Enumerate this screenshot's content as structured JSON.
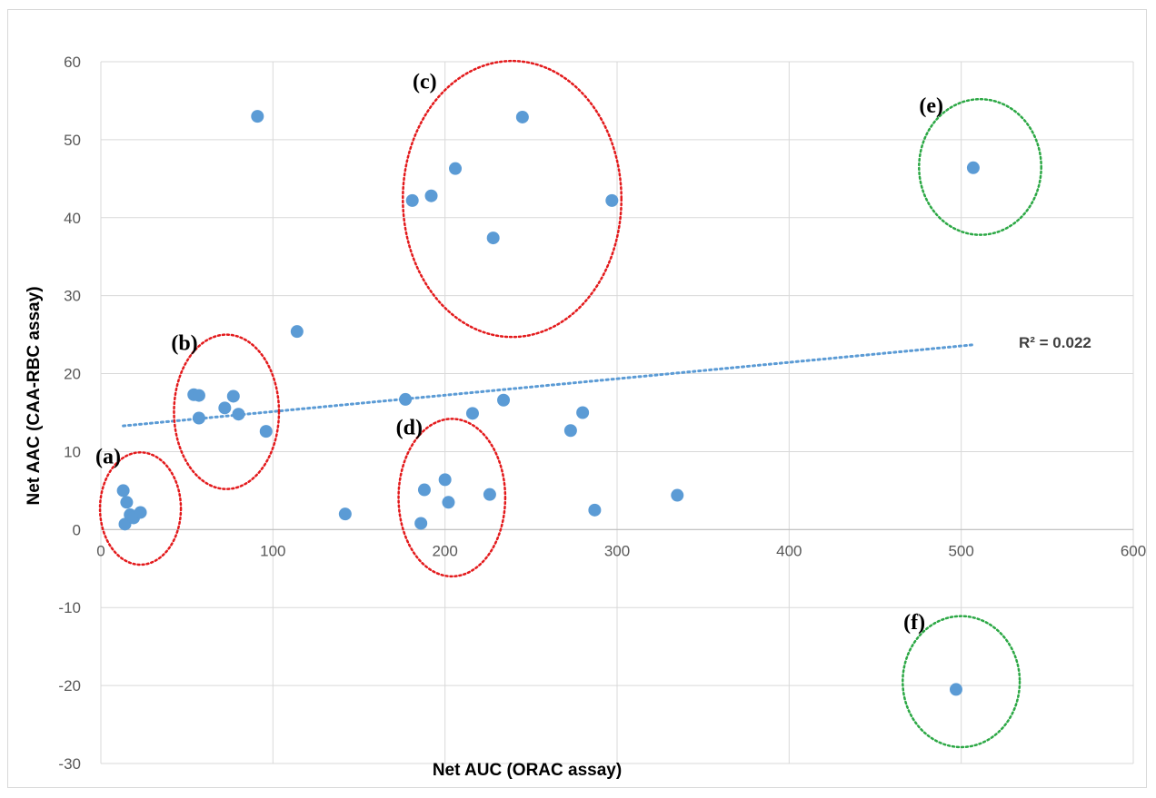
{
  "chart_data": {
    "type": "scatter",
    "title": "",
    "xlabel": "Net AUC (ORAC assay)",
    "ylabel": "Net AAC (CAA-RBC assay)",
    "xlim": [
      0,
      600
    ],
    "ylim": [
      -30,
      60
    ],
    "xticks": [
      0,
      100,
      200,
      300,
      400,
      500,
      600
    ],
    "yticks": [
      -30,
      -20,
      -10,
      0,
      10,
      20,
      30,
      40,
      50,
      60
    ],
    "grid": true,
    "marker_color": "#5b9bd5",
    "points": [
      {
        "x": 13,
        "y": 5.0
      },
      {
        "x": 15,
        "y": 3.5
      },
      {
        "x": 14,
        "y": 0.7
      },
      {
        "x": 17,
        "y": 1.9
      },
      {
        "x": 19,
        "y": 1.5
      },
      {
        "x": 23,
        "y": 2.2
      },
      {
        "x": 54,
        "y": 17.3
      },
      {
        "x": 57,
        "y": 17.2
      },
      {
        "x": 57,
        "y": 14.3
      },
      {
        "x": 72,
        "y": 15.6
      },
      {
        "x": 77,
        "y": 17.1
      },
      {
        "x": 80,
        "y": 14.8
      },
      {
        "x": 91,
        "y": 53.0
      },
      {
        "x": 96,
        "y": 12.6
      },
      {
        "x": 114,
        "y": 25.4
      },
      {
        "x": 142,
        "y": 2.0
      },
      {
        "x": 177,
        "y": 16.7
      },
      {
        "x": 181,
        "y": 42.2
      },
      {
        "x": 186,
        "y": 0.8
      },
      {
        "x": 188,
        "y": 5.1
      },
      {
        "x": 192,
        "y": 42.8
      },
      {
        "x": 200,
        "y": 6.4
      },
      {
        "x": 202,
        "y": 3.5
      },
      {
        "x": 206,
        "y": 46.3
      },
      {
        "x": 216,
        "y": 14.9
      },
      {
        "x": 226,
        "y": 4.5
      },
      {
        "x": 228,
        "y": 37.4
      },
      {
        "x": 234,
        "y": 16.6
      },
      {
        "x": 245,
        "y": 52.9
      },
      {
        "x": 273,
        "y": 12.7
      },
      {
        "x": 280,
        "y": 15.0
      },
      {
        "x": 287,
        "y": 2.5
      },
      {
        "x": 297,
        "y": 42.2
      },
      {
        "x": 335,
        "y": 4.4
      },
      {
        "x": 497,
        "y": -20.5
      },
      {
        "x": 507,
        "y": 46.4
      }
    ],
    "trendline": {
      "type": "linear",
      "color": "#5b9bd5",
      "style": "dotted",
      "x_range": [
        13,
        507
      ],
      "y_start": 13.3,
      "y_end": 23.7,
      "r2_label": "R² = 0.022"
    },
    "groups": [
      {
        "label": "(a)",
        "cx": 23,
        "cy": 2.7,
        "rx": 23.5,
        "ry": 7.2,
        "color": "#e31a1c"
      },
      {
        "label": "(b)",
        "cx": 73,
        "cy": 15.1,
        "rx": 30.5,
        "ry": 9.9,
        "color": "#e31a1c"
      },
      {
        "label": "(c)",
        "cx": 239,
        "cy": 42.4,
        "rx": 63.5,
        "ry": 17.7,
        "color": "#e31a1c"
      },
      {
        "label": "(d)",
        "cx": 204,
        "cy": 4.1,
        "rx": 31,
        "ry": 10.1,
        "color": "#e31a1c"
      },
      {
        "label": "(e)",
        "cx": 511,
        "cy": 46.5,
        "rx": 35.5,
        "ry": 8.7,
        "color": "#2ca845"
      },
      {
        "label": "(f)",
        "cx": 500,
        "cy": -19.5,
        "rx": 34,
        "ry": 8.4,
        "color": "#2ca845"
      }
    ]
  }
}
